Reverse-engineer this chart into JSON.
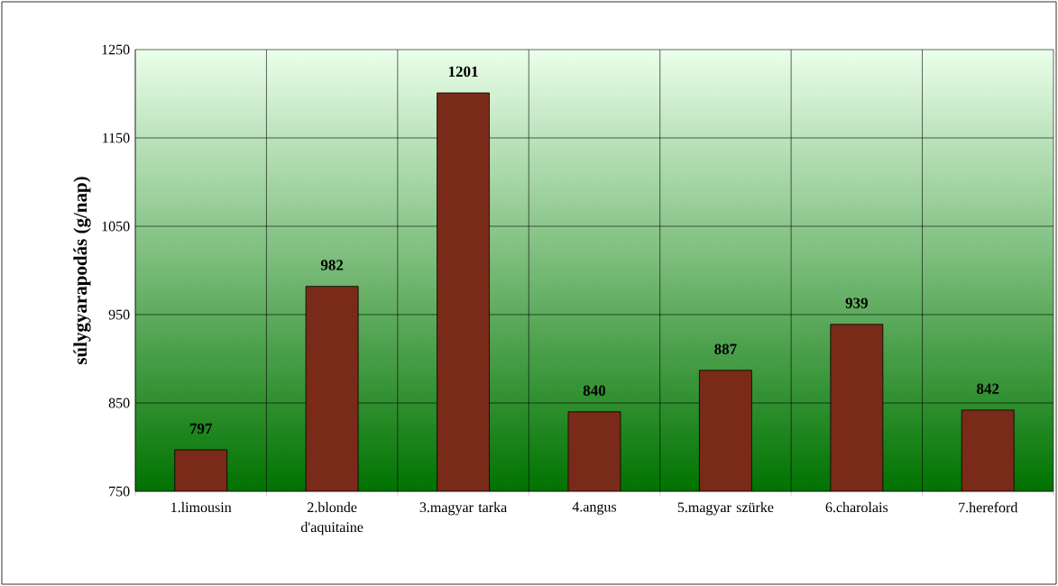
{
  "chart_data": {
    "type": "bar",
    "ylabel": "súlygyarapodás (g/nap)",
    "categories": [
      "1.limousin",
      "2.blonde d'aquitaine",
      "3.magyar tarka",
      "4.angus",
      "5.magyar szürke",
      "6.charolais",
      "7.hereford"
    ],
    "values": [
      797,
      982,
      1201,
      840,
      887,
      939,
      842
    ],
    "color": "#7a2a18",
    "ylim": [
      750,
      1250
    ],
    "yticks": [
      750,
      850,
      950,
      1050,
      1150,
      1250
    ],
    "grid": true,
    "data_labels": true
  }
}
